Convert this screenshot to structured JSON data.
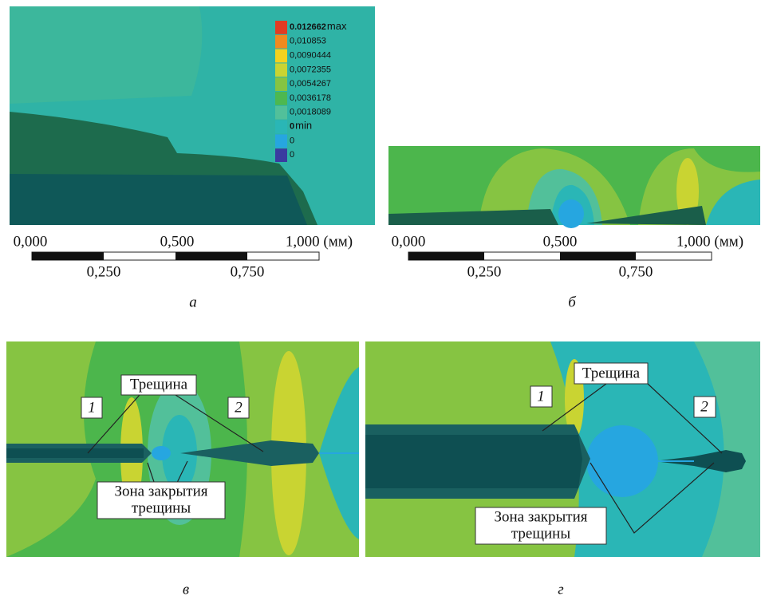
{
  "legend": {
    "entries": [
      {
        "value": "0.012662",
        "suffix": "max",
        "color": "#e23b22"
      },
      {
        "value": "0,010853",
        "color": "#f08a1f"
      },
      {
        "value": "0,0090444",
        "color": "#f3d21e"
      },
      {
        "value": "0,0072355",
        "color": "#c9d432"
      },
      {
        "value": "0,0054267",
        "color": "#86c442"
      },
      {
        "value": "0,0036178",
        "color": "#4db850"
      },
      {
        "value": "0,0018089",
        "color": "#52c09a"
      },
      {
        "value": "0",
        "suffix": "min",
        "color": "#2ab6b6"
      },
      {
        "value": "0",
        "color": "#26a6e0"
      },
      {
        "value": "0",
        "color": "#3a3aa0"
      }
    ]
  },
  "panels": [
    {
      "label": "а",
      "scale": {
        "top": [
          "0,000",
          "0,500",
          "1,000 (мм)"
        ],
        "bottom": [
          "0,250",
          "0,750"
        ]
      }
    },
    {
      "label": "б",
      "scale": {
        "top": [
          "0,000",
          "0,500",
          "1,000 (мм)"
        ],
        "bottom": [
          "0,250",
          "0,750"
        ]
      }
    },
    {
      "label": "в",
      "annotations": {
        "crack": "Трещина",
        "one": "1",
        "two": "2",
        "zone": [
          "Зона закрытия",
          "трещины"
        ]
      }
    },
    {
      "label": "г",
      "annotations": {
        "crack": "Трещина",
        "one": "1",
        "two": "2",
        "zone": [
          "Зона закрытия",
          "трещины"
        ]
      }
    }
  ]
}
